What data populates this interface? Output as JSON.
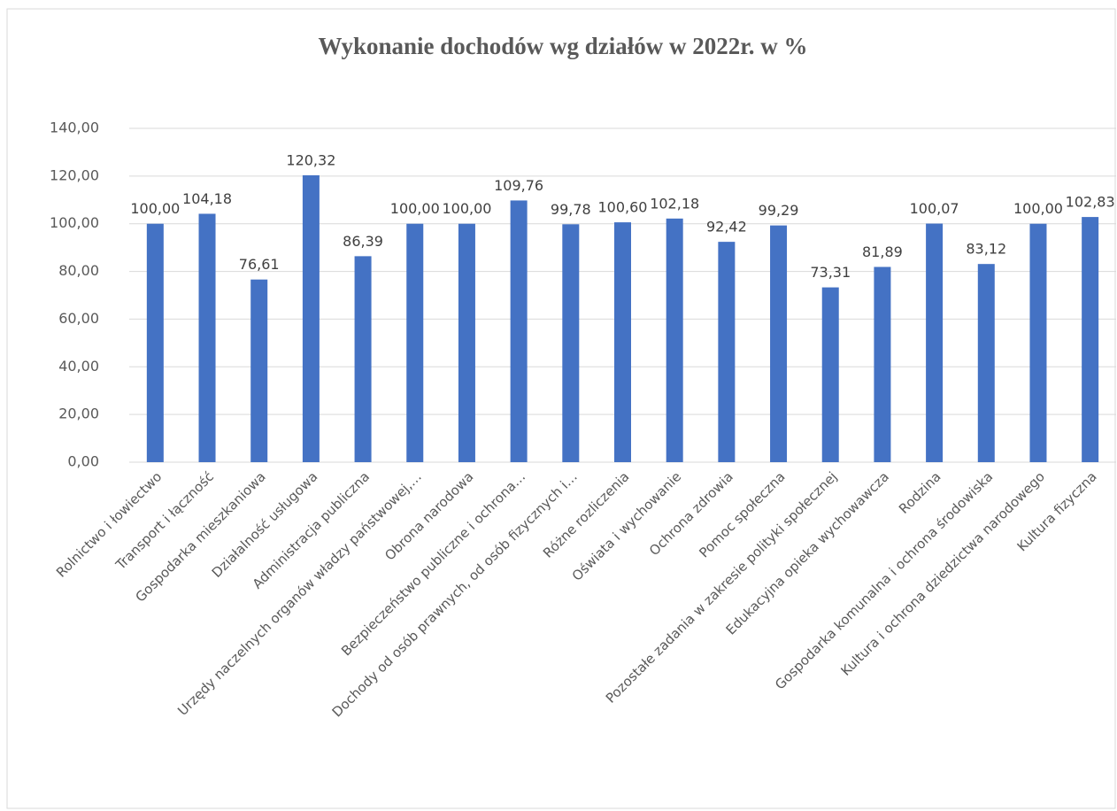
{
  "chart_data": {
    "type": "bar",
    "title": "Wykonanie dochodów wg działów w 2022r. w %",
    "categories": [
      "Rolnictwo i łowiectwo",
      "Transport  i  łączność",
      "Gospodarka  mieszkaniowa",
      "Działalność  usługowa",
      "Administracja  publiczna",
      "Urzędy naczelnych organów władzy państwowej,…",
      "Obrona narodowa",
      "Bezpieczeństwo publiczne i ochrona…",
      "Dochody od osób prawnych, od osób fizycznych i…",
      "Różne rozliczenia",
      "Oświata i wychowanie",
      "Ochrona zdrowia",
      "Pomoc społeczna",
      "Pozostałe zadania w zakresie polityki społecznej",
      "Edukacyjna opieka wychowawcza",
      "Rodzina",
      "Gospodarka komunalna i ochrona środowiska",
      "Kultura i ochrona dziedzictwa narodowego",
      "Kultura fizyczna"
    ],
    "values": [
      100.0,
      104.18,
      76.61,
      120.32,
      86.39,
      100.0,
      100.0,
      109.76,
      99.78,
      100.6,
      102.18,
      92.42,
      99.29,
      73.31,
      81.89,
      100.07,
      83.12,
      100.0,
      102.83
    ],
    "value_labels": [
      "100,00",
      "104,18",
      "76,61",
      "120,32",
      "86,39",
      "100,00",
      "100,00",
      "109,76",
      "99,78",
      "100,60",
      "102,18",
      "92,42",
      "99,29",
      "73,31",
      "81,89",
      "100,07",
      "83,12",
      "100,00",
      "102,83"
    ],
    "color": "#4472c4",
    "ylim": [
      0,
      140
    ],
    "yticks": [
      {
        "value": 0,
        "label": "0,00"
      },
      {
        "value": 20,
        "label": "20,00"
      },
      {
        "value": 40,
        "label": "40,00"
      },
      {
        "value": 60,
        "label": "60,00"
      },
      {
        "value": 80,
        "label": "80,00"
      },
      {
        "value": 100,
        "label": "100,00"
      },
      {
        "value": 120,
        "label": "120,00"
      },
      {
        "value": 140,
        "label": "140,00"
      }
    ],
    "grid": true
  }
}
